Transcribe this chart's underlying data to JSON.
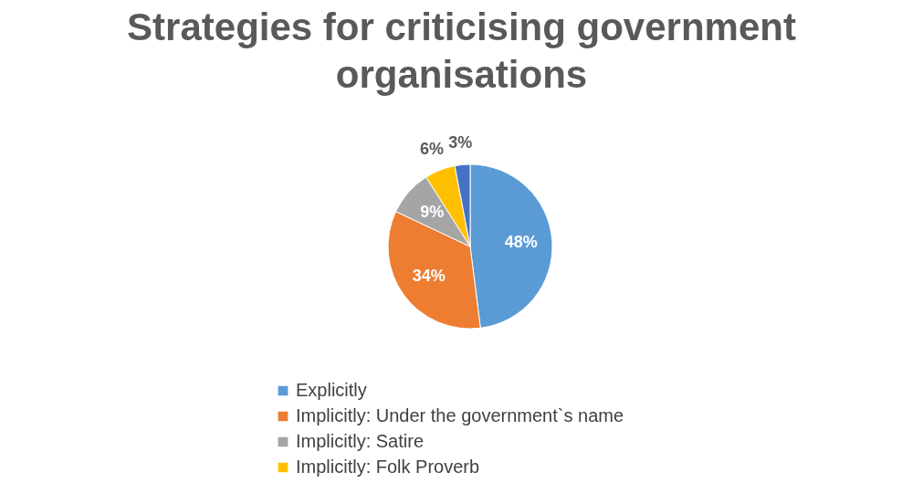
{
  "chart_data": {
    "type": "pie",
    "title": "Strategies for criticising government organisations",
    "categories": [
      "Explicitly",
      "Implicitly: Under the government`s name",
      "Implicitly: Satire",
      "Implicitly: Folk Proverb",
      null
    ],
    "values": [
      48,
      34,
      9,
      6,
      3
    ],
    "colors": [
      "#5b9bd5",
      "#ed7d31",
      "#a5a5a5",
      "#ffc000",
      "#4472c4"
    ],
    "value_labels": [
      "48%",
      "34%",
      "9%",
      "6%",
      "3%"
    ],
    "legend": "bottom"
  }
}
